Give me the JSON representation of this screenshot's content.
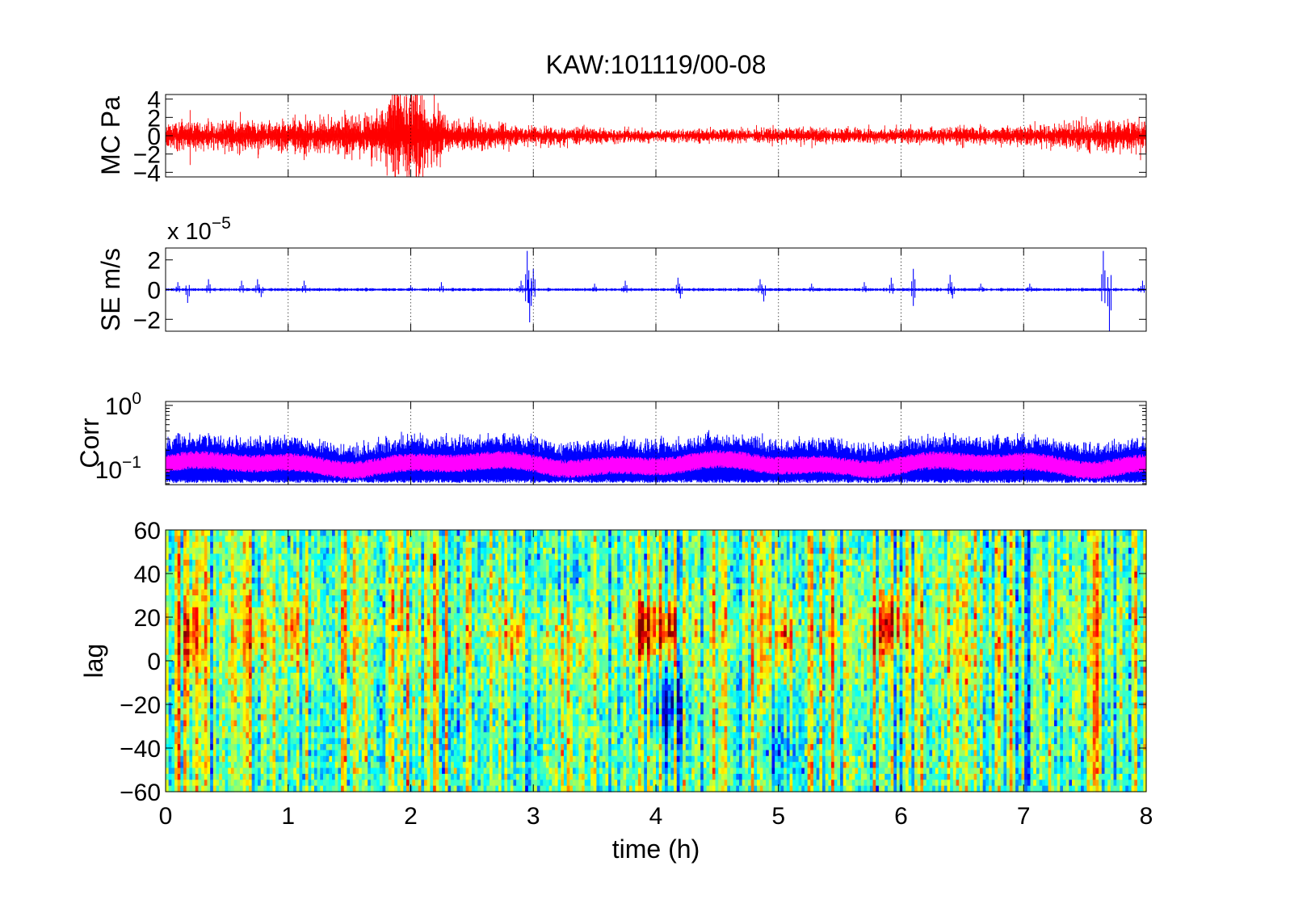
{
  "figure": {
    "title": "KAW:101119/00-08"
  },
  "chart_data": [
    {
      "type": "line",
      "panel": "microphone",
      "ylabel": "MC Pa",
      "xlim": [
        0,
        8
      ],
      "ylim": [
        -4.5,
        4.5
      ],
      "yticks": [
        -4,
        -2,
        0,
        2,
        4
      ],
      "ytick_labels": [
        "−4",
        "−2",
        "0",
        "2",
        "4"
      ],
      "x_grid_lines": [
        1,
        2,
        3,
        4,
        5,
        6,
        7
      ],
      "colors": {
        "trace": "#ff0000"
      },
      "series": [
        {
          "typical_amplitude": 0.6,
          "envelope": [
            [
              0,
              0.7
            ],
            [
              0.8,
              0.8
            ],
            [
              1.2,
              0.9
            ],
            [
              1.6,
              1.0
            ],
            [
              1.8,
              1.5
            ],
            [
              1.9,
              2.6
            ],
            [
              2.05,
              2.4
            ],
            [
              2.3,
              1.0
            ],
            [
              2.6,
              0.7
            ],
            [
              3.0,
              0.5
            ],
            [
              4.0,
              0.3
            ],
            [
              5.0,
              0.4
            ],
            [
              6.0,
              0.4
            ],
            [
              7.0,
              0.5
            ],
            [
              7.5,
              0.7
            ],
            [
              7.8,
              0.9
            ],
            [
              8.0,
              0.8
            ]
          ],
          "peaks": [
            {
              "x": 0.2,
              "max": 2.8,
              "min": -3.2
            },
            {
              "x": 1.9,
              "max": 4.3,
              "min": -4.2
            },
            {
              "x": 2.0,
              "max": 2.5,
              "min": -3.0
            },
            {
              "x": 7.6,
              "max": 1.8,
              "min": -1.6
            }
          ]
        }
      ]
    },
    {
      "type": "line",
      "panel": "seismometer",
      "ylabel": "SE m/s",
      "scale_label": "x 10",
      "scale_exponent": "−5",
      "xlim": [
        0,
        8
      ],
      "ylim": [
        -2.8,
        2.8
      ],
      "yticks": [
        -2,
        0,
        2
      ],
      "ytick_labels": [
        "−2",
        "0",
        "2"
      ],
      "x_grid_lines": [
        1,
        2,
        3,
        4,
        5,
        6,
        7
      ],
      "colors": {
        "trace": "#0000ff"
      },
      "series": [
        {
          "typical_amplitude": 0.05,
          "spikes": [
            [
              0.1,
              0.5
            ],
            [
              0.18,
              -0.9
            ],
            [
              0.35,
              0.7
            ],
            [
              0.62,
              0.6
            ],
            [
              0.75,
              0.7
            ],
            [
              0.78,
              -0.5
            ],
            [
              1.13,
              0.6
            ],
            [
              2.0,
              0.3
            ],
            [
              2.25,
              0.5
            ],
            [
              2.9,
              0.6
            ],
            [
              2.95,
              2.6
            ],
            [
              2.97,
              -2.2
            ],
            [
              3.0,
              1.4
            ],
            [
              3.5,
              0.4
            ],
            [
              3.75,
              0.6
            ],
            [
              4.18,
              0.8
            ],
            [
              4.2,
              -0.6
            ],
            [
              4.85,
              0.7
            ],
            [
              4.88,
              -0.8
            ],
            [
              5.27,
              0.4
            ],
            [
              5.7,
              0.5
            ],
            [
              5.92,
              0.8
            ],
            [
              6.1,
              1.4
            ],
            [
              6.1,
              -1.1
            ],
            [
              6.4,
              1.0
            ],
            [
              6.42,
              -0.6
            ],
            [
              6.65,
              0.4
            ],
            [
              7.05,
              0.4
            ],
            [
              7.65,
              2.6
            ],
            [
              7.7,
              -2.8
            ],
            [
              7.97,
              0.6
            ]
          ]
        }
      ]
    },
    {
      "type": "line",
      "panel": "correlation",
      "ylabel": "Corr",
      "yscale": "log",
      "xlim": [
        0,
        8
      ],
      "ylim": [
        0.058,
        1.15
      ],
      "yticks": [
        0.1,
        1
      ],
      "ytick_labels": [
        {
          "base": "10",
          "exp": "−1"
        },
        {
          "base": "10",
          "exp": "0"
        }
      ],
      "x_grid_lines": [
        1,
        2,
        3,
        4,
        5,
        6,
        7
      ],
      "colors": {
        "max": "#0000ff",
        "mean": "#ff00ff"
      },
      "series": [
        {
          "name": "blue",
          "typical_low": 0.065,
          "typical_high": 0.25
        },
        {
          "name": "magenta",
          "typical_low": 0.095,
          "typical_high": 0.16
        }
      ]
    },
    {
      "type": "heatmap",
      "panel": "lag",
      "ylabel": "lag",
      "xlabel": "time (h)",
      "xlim": [
        0,
        8
      ],
      "ylim": [
        -60,
        60
      ],
      "xticks": [
        0,
        1,
        2,
        3,
        4,
        5,
        6,
        7,
        8
      ],
      "xtick_labels": [
        "0",
        "1",
        "2",
        "3",
        "4",
        "5",
        "6",
        "7",
        "8"
      ],
      "yticks": [
        -60,
        -40,
        -20,
        0,
        20,
        40,
        60
      ],
      "ytick_labels": [
        "−60",
        "−40",
        "−20",
        "0",
        "20",
        "40",
        "60"
      ],
      "colormap": "jet",
      "value_range": [
        0.3,
        0.75
      ],
      "baseline_value": 0.52,
      "hotspots": [
        {
          "time": 0.2,
          "lag": 12,
          "strength": 0.12
        },
        {
          "time": 0.75,
          "lag": 12,
          "strength": 0.1
        },
        {
          "time": 1.05,
          "lag": 14,
          "strength": 0.1
        },
        {
          "time": 2.85,
          "lag": 12,
          "strength": 0.1
        },
        {
          "time": 3.9,
          "lag": 14,
          "strength": 0.2
        },
        {
          "time": 4.1,
          "lag": 14,
          "strength": 0.18
        },
        {
          "time": 5.05,
          "lag": 10,
          "strength": 0.12
        },
        {
          "time": 5.85,
          "lag": 14,
          "strength": 0.15
        },
        {
          "time": 5.95,
          "lag": 20,
          "strength": 0.12
        }
      ],
      "coldspots": [
        {
          "time": 4.1,
          "lag": -20,
          "strength": 0.12
        },
        {
          "time": 3.3,
          "lag": 40,
          "strength": 0.08
        },
        {
          "time": 4.95,
          "lag": -40,
          "strength": 0.08
        }
      ]
    }
  ]
}
